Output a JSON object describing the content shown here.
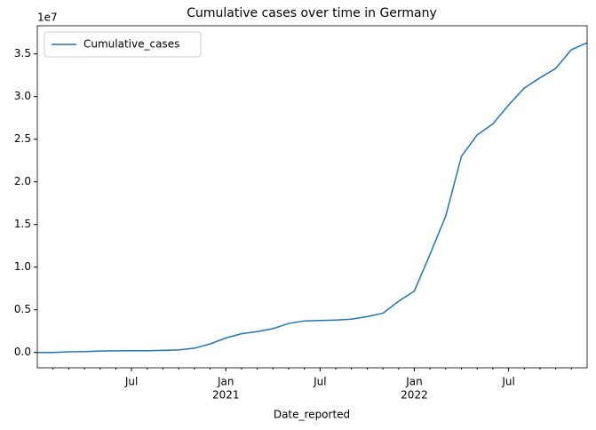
{
  "chart_data": {
    "type": "line",
    "title": "Cumulative cases over time in Germany",
    "x_label": "Date_reported",
    "y_offset_label": "1e7",
    "x": [
      "2020-01",
      "2020-02",
      "2020-03",
      "2020-04",
      "2020-05",
      "2020-06",
      "2020-07",
      "2020-08",
      "2020-09",
      "2020-10",
      "2020-11",
      "2020-12",
      "2021-01",
      "2021-02",
      "2021-03",
      "2021-04",
      "2021-05",
      "2021-06",
      "2021-07",
      "2021-08",
      "2021-09",
      "2021-10",
      "2021-11",
      "2021-12",
      "2022-01",
      "2022-02",
      "2022-03",
      "2022-04",
      "2022-05",
      "2022-06",
      "2022-07",
      "2022-08",
      "2022-09",
      "2022-10",
      "2022-11",
      "2022-12"
    ],
    "series": [
      {
        "name": "Cumulative_cases",
        "color": "#1f77b4",
        "values": [
          0,
          0,
          0.007,
          0.01,
          0.017,
          0.019,
          0.02,
          0.021,
          0.025,
          0.03,
          0.05,
          0.1,
          0.17,
          0.22,
          0.245,
          0.28,
          0.34,
          0.37,
          0.375,
          0.38,
          0.39,
          0.42,
          0.46,
          0.6,
          0.72,
          1.15,
          1.6,
          2.3,
          2.55,
          2.68,
          2.9,
          3.1,
          3.22,
          3.33,
          3.55,
          3.63
        ]
      }
    ],
    "xlim": [
      "2020-01",
      "2022-12"
    ],
    "xticks": [
      {
        "value": "2020-07",
        "label": "Jul"
      },
      {
        "value": "2021-01",
        "label": "Jan",
        "sublabel": "2021"
      },
      {
        "value": "2021-07",
        "label": "Jul"
      },
      {
        "value": "2022-01",
        "label": "Jan",
        "sublabel": "2022"
      },
      {
        "value": "2022-07",
        "label": "Jul"
      }
    ],
    "xminorticks": [
      "2020-02",
      "2020-03",
      "2020-04",
      "2020-05",
      "2020-06",
      "2020-08",
      "2020-09",
      "2020-10",
      "2020-11",
      "2020-12",
      "2021-02",
      "2021-03",
      "2021-04",
      "2021-05",
      "2021-06",
      "2021-08",
      "2021-09",
      "2021-10",
      "2021-11",
      "2021-12",
      "2022-02",
      "2022-03",
      "2022-04",
      "2022-05",
      "2022-06",
      "2022-08",
      "2022-09",
      "2022-10",
      "2022-11"
    ],
    "ylim": [
      -0.18,
      3.83
    ],
    "yticks": [
      {
        "value": 0,
        "label": "0.0"
      },
      0.5,
      {
        "value": 1,
        "label": "1.0"
      },
      1.5,
      {
        "value": 2,
        "label": "2.0"
      },
      2.5,
      {
        "value": 3,
        "label": "3.0"
      },
      3.5
    ],
    "legend": "upper left"
  }
}
